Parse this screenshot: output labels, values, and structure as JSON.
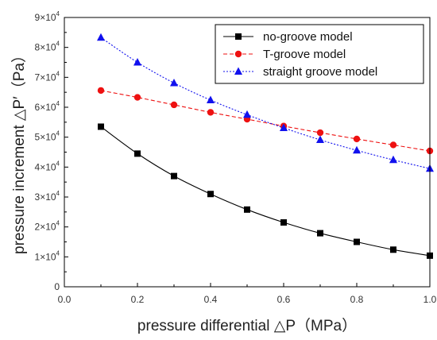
{
  "chart_data": {
    "type": "line",
    "xlabel": "pressure differential △P（MPa）",
    "ylabel": "pressure increment △P′（Pa）",
    "xlim": [
      0.0,
      1.0
    ],
    "ylim": [
      0,
      90000
    ],
    "x_ticks": [
      "0.0",
      "0.2",
      "0.4",
      "0.6",
      "0.8",
      "1.0"
    ],
    "y_ticks": [
      {
        "mant": "0",
        "exp": ""
      },
      {
        "mant": "1×10",
        "exp": "4"
      },
      {
        "mant": "2×10",
        "exp": "4"
      },
      {
        "mant": "3×10",
        "exp": "4"
      },
      {
        "mant": "4×10",
        "exp": "4"
      },
      {
        "mant": "5×10",
        "exp": "4"
      },
      {
        "mant": "6×10",
        "exp": "4"
      },
      {
        "mant": "7×10",
        "exp": "4"
      },
      {
        "mant": "8×10",
        "exp": "4"
      },
      {
        "mant": "9×10",
        "exp": "4"
      }
    ],
    "x": [
      0.1,
      0.2,
      0.3,
      0.4,
      0.5,
      0.6,
      0.7,
      0.8,
      0.9,
      1.0
    ],
    "series": [
      {
        "name": "no-groove model",
        "values": [
          53500,
          44500,
          37000,
          31000,
          25800,
          21500,
          17900,
          15000,
          12400,
          10400
        ],
        "color": "#000000",
        "marker": "square",
        "line": "solid"
      },
      {
        "name": "T-groove model",
        "values": [
          65600,
          63300,
          60800,
          58300,
          56000,
          53700,
          51500,
          49400,
          47400,
          45400
        ],
        "color": "#ee1111",
        "marker": "circle",
        "line": "dashed"
      },
      {
        "name": "straight groove model",
        "values": [
          83300,
          75000,
          68100,
          62400,
          57500,
          53100,
          49100,
          45600,
          42400,
          39500
        ],
        "color": "#1111ee",
        "marker": "triangle",
        "line": "dotted"
      }
    ],
    "legend": "top-right",
    "grid": false
  }
}
